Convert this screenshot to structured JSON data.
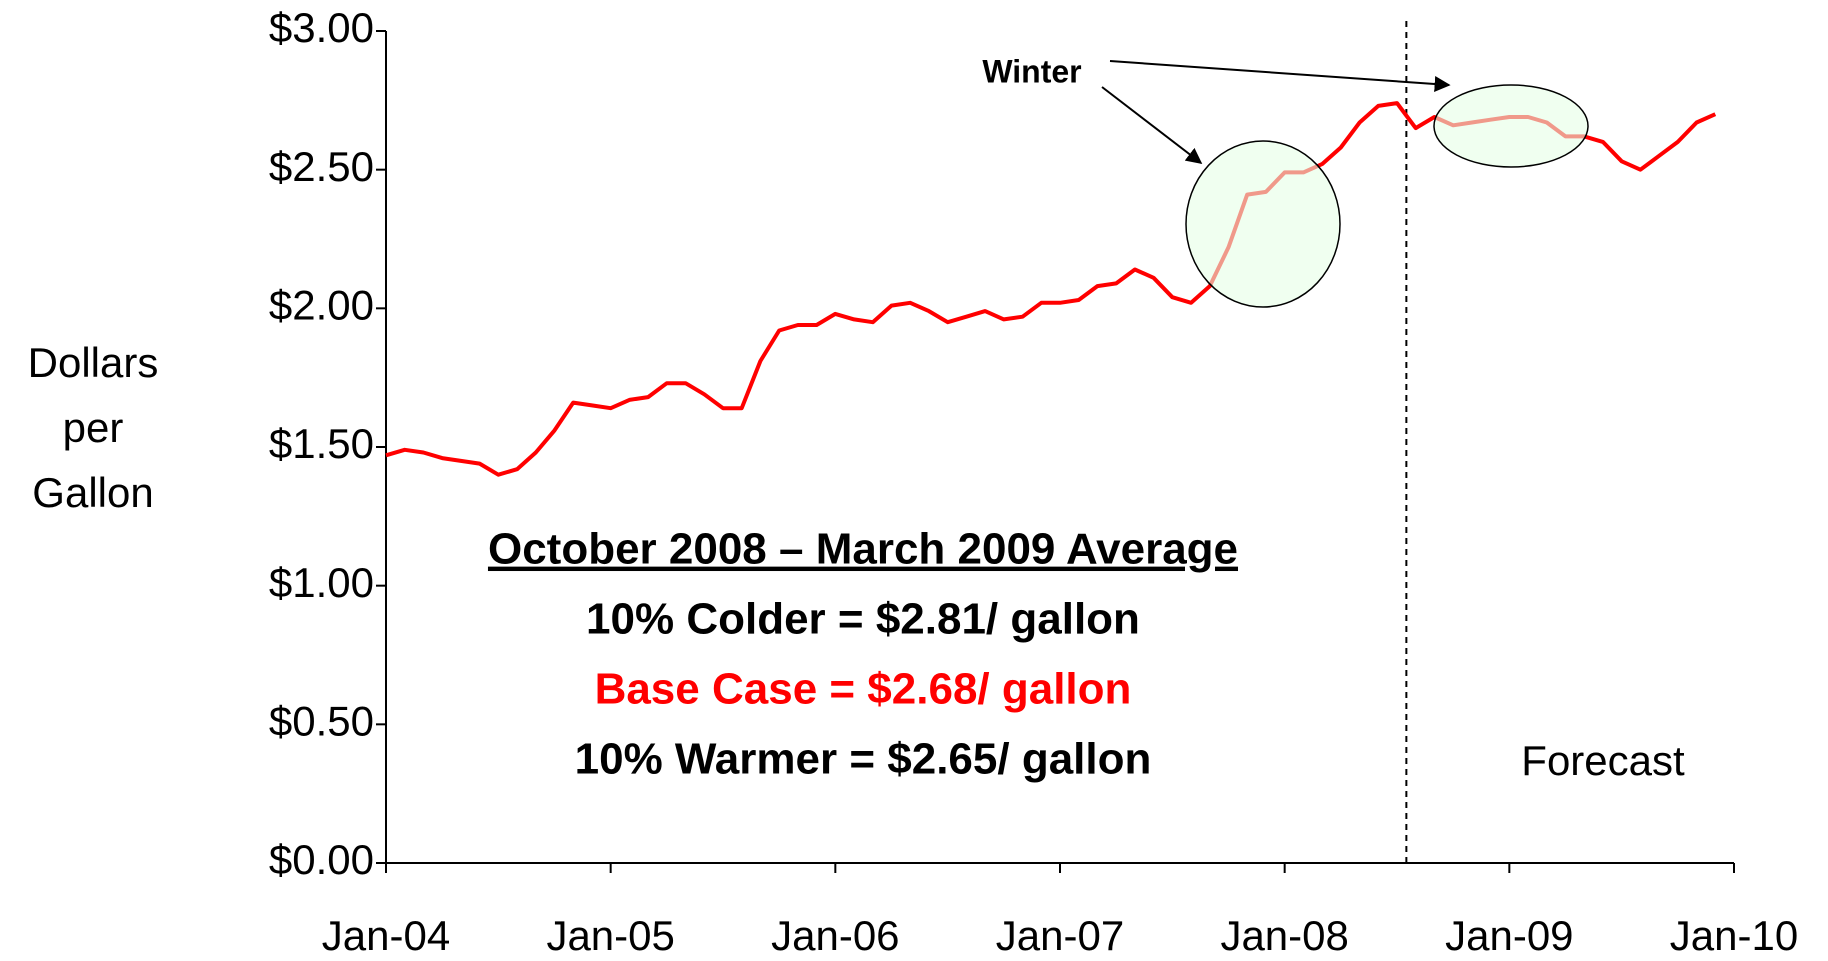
{
  "chart_data": {
    "type": "line",
    "y_label": "Dollars per Gallon",
    "color": "#ff0000",
    "categories": [
      "Jan-04",
      null,
      null,
      null,
      null,
      null,
      null,
      null,
      null,
      null,
      null,
      null,
      "Jan-05",
      null,
      null,
      null,
      null,
      null,
      null,
      null,
      null,
      null,
      null,
      null,
      "Jan-06",
      null,
      null,
      null,
      null,
      null,
      null,
      null,
      null,
      null,
      null,
      null,
      "Jan-07",
      null,
      null,
      null,
      null,
      null,
      null,
      null,
      null,
      null,
      null,
      null,
      "Jan-08",
      null,
      null,
      null,
      null,
      null,
      null,
      null,
      null,
      null,
      null,
      null,
      "Jan-09",
      null,
      null,
      null,
      null,
      null,
      null,
      null,
      null,
      null,
      null,
      null,
      "Jan-10"
    ],
    "values": [
      1.47,
      1.49,
      1.48,
      1.46,
      1.45,
      1.44,
      1.4,
      1.42,
      1.48,
      1.56,
      1.66,
      1.65,
      1.64,
      1.67,
      1.68,
      1.73,
      1.73,
      1.69,
      1.64,
      1.64,
      1.81,
      1.92,
      1.94,
      1.94,
      1.98,
      1.96,
      1.95,
      2.01,
      2.02,
      1.99,
      1.95,
      1.97,
      1.99,
      1.96,
      1.97,
      2.02,
      2.02,
      2.03,
      2.08,
      2.09,
      2.14,
      2.11,
      2.04,
      2.02,
      2.08,
      2.22,
      2.41,
      2.42,
      2.49,
      2.49,
      2.52,
      2.58,
      2.67,
      2.73,
      2.74,
      2.65,
      2.69,
      2.66,
      2.67,
      2.68,
      2.69,
      2.69,
      2.67,
      2.62,
      2.62,
      2.6,
      2.53,
      2.5,
      2.55,
      2.6,
      2.67,
      2.7,
      null
    ],
    "ylim": [
      0,
      3
    ],
    "yticks": [
      {
        "value": 0,
        "label": "$0.00"
      },
      {
        "value": 0.5,
        "label": "$0.50"
      },
      {
        "value": 1,
        "label": "$1.00"
      },
      {
        "value": 1.5,
        "label": "$1.50"
      },
      {
        "value": 2,
        "label": "$2.00"
      },
      {
        "value": 2.5,
        "label": "$2.50"
      },
      {
        "value": 3,
        "label": "$3.00"
      }
    ],
    "annotations": {
      "winter": "Winter",
      "forecast": "Forecast",
      "box_title": "October 2008 – March 2009 Average",
      "colder": "10% Colder = $2.81/ gallon",
      "base": "Base Case = $2.68/ gallon",
      "warmer": "10% Warmer = $2.65/ gallon"
    }
  }
}
